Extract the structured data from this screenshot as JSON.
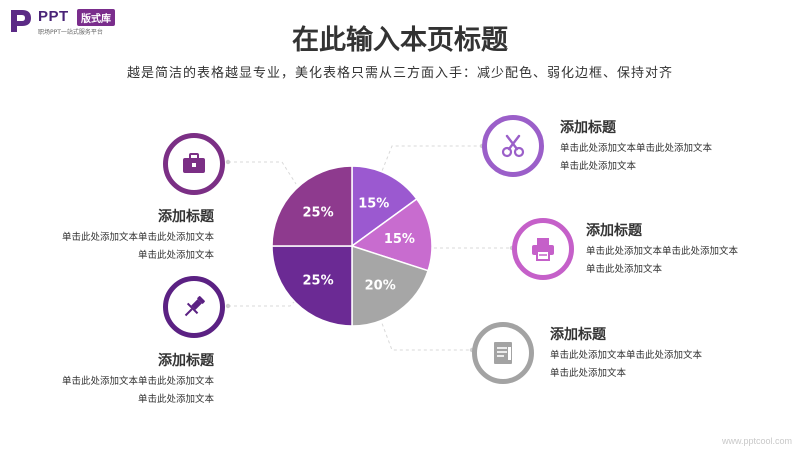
{
  "logo": {
    "brand": "PPT",
    "badge": "版式库",
    "tagline": "职场PPT一站式服务平台"
  },
  "page": {
    "title": "在此输入本页标题",
    "subtitle": "越是简洁的表格越显专业，美化表格只需从三方面入手：减少配色、弱化边框、保持对齐"
  },
  "chart_data": {
    "type": "pie",
    "categories": [
      "",
      "",
      "",
      "",
      ""
    ],
    "values": [
      15,
      15,
      20,
      25,
      25
    ],
    "labels": [
      "15%",
      "15%",
      "20%",
      "25%",
      "25%"
    ],
    "colors": [
      "#9b59d0",
      "#c86ccf",
      "#a6a6a6",
      "#6b2a94",
      "#8e3a8e"
    ],
    "title": ""
  },
  "cards": [
    {
      "icon": "briefcase-icon",
      "color": "#7b2f85",
      "title": "添加标题",
      "lines": [
        "单击此处添加文本单击此处添加文本",
        "单击此处添加文本"
      ]
    },
    {
      "icon": "pushpin-icon",
      "color": "#5b2183",
      "title": "添加标题",
      "lines": [
        "单击此处添加文本单击此处添加文本",
        "单击此处添加文本"
      ]
    },
    {
      "icon": "scissors-icon",
      "color": "#9b5fc9",
      "title": "添加标题",
      "lines": [
        "单击此处添加文本单击此处添加文本",
        "单击此处添加文本"
      ]
    },
    {
      "icon": "printer-icon",
      "color": "#c560c9",
      "title": "添加标题",
      "lines": [
        "单击此处添加文本单击此处添加文本",
        "单击此处添加文本"
      ]
    },
    {
      "icon": "document-icon",
      "color": "#a3a3a3",
      "title": "添加标题",
      "lines": [
        "单击此处添加文本单击此处添加文本",
        "单击此处添加文本"
      ]
    }
  ],
  "watermark": "www.pptcool.com"
}
